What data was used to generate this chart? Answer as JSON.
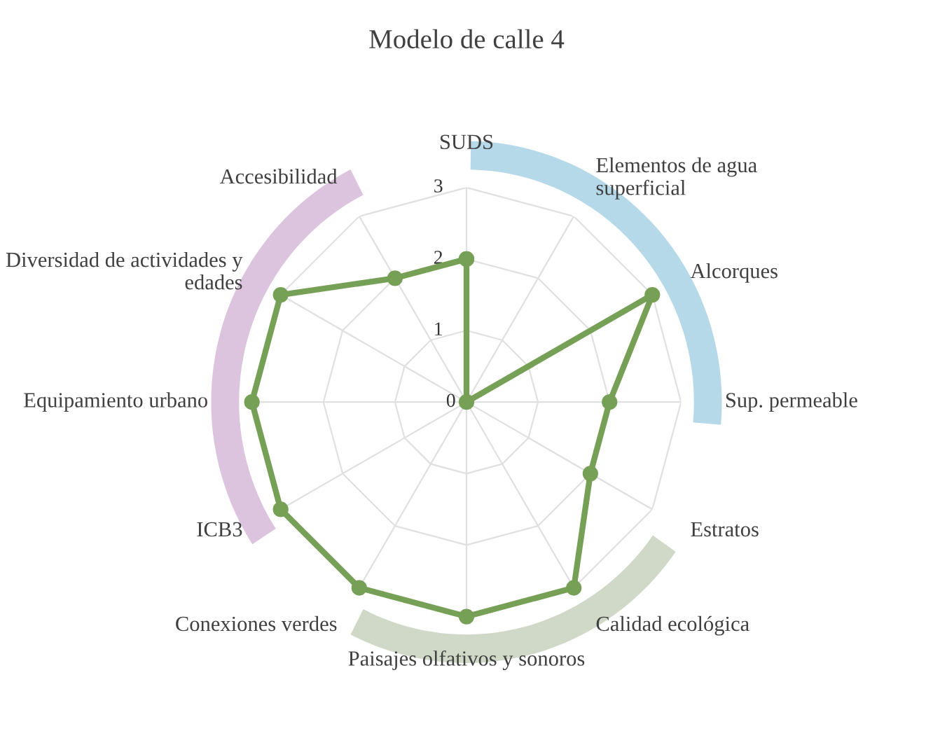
{
  "chart_data": {
    "type": "radar",
    "title": "Modelo de calle 4",
    "categories": [
      "SUDS",
      "Elementos de agua\nsuperficial",
      "Alcorques",
      "Sup. permeable",
      "Estratos",
      "Calidad ecológica",
      "Paisajes olfativos y sonoros",
      "Conexiones verdes",
      "ICB3",
      "Equipamiento urbano",
      "Diversidad de actividades y\nedades",
      "Accesibilidad"
    ],
    "series": [
      {
        "color": "#76a055",
        "values": [
          2,
          0,
          3,
          2,
          2,
          3,
          3,
          3,
          3,
          3,
          3,
          2
        ]
      }
    ],
    "ylim": [
      0,
      3
    ],
    "yticks": [
      0,
      1,
      2,
      3
    ],
    "grid": true,
    "marker": "circle",
    "line_style": "solid"
  }
}
